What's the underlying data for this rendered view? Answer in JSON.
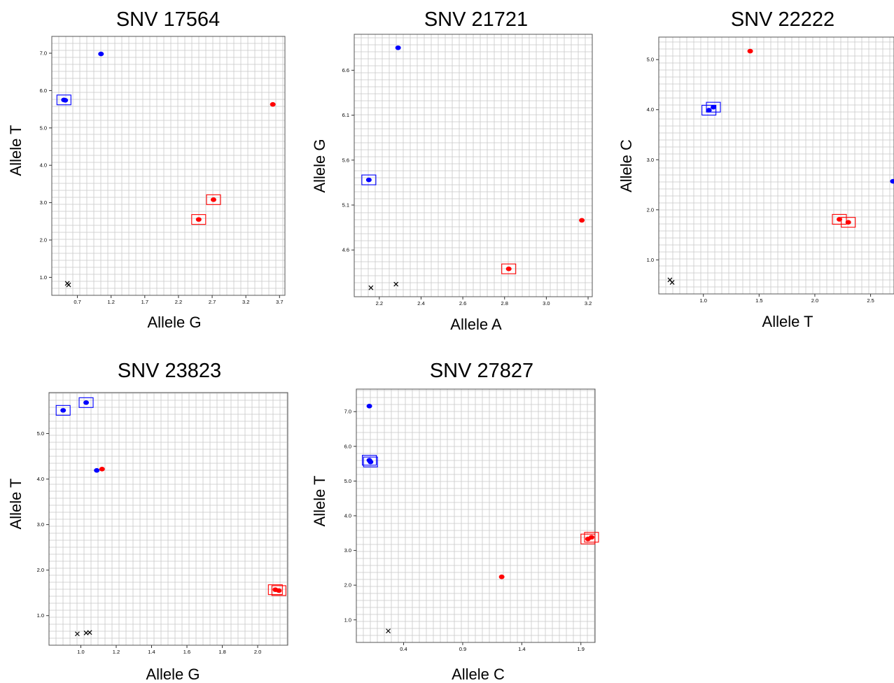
{
  "chart_data": [
    {
      "type": "scatter",
      "title": "SNV 17564",
      "xlabel": "Allele G",
      "ylabel": "Allele T",
      "xlim": [
        0.32,
        3.78
      ],
      "ylim": [
        0.52,
        7.45
      ],
      "xticks": [
        "0.7",
        "1.2",
        "1.7",
        "2.2",
        "2.7",
        "3.2",
        "3.7"
      ],
      "yticks": [
        "1.0",
        "2.0",
        "3.0",
        "4.0",
        "5.0",
        "6.0",
        "7.0"
      ],
      "grid": true,
      "points": [
        {
          "x": 1.05,
          "y": 6.98,
          "color": "#0000ff",
          "marker": "dot",
          "boxed": false
        },
        {
          "x": 0.5,
          "y": 5.75,
          "color": "#0000ff",
          "marker": "dot",
          "boxed": true
        },
        {
          "x": 0.52,
          "y": 5.74,
          "color": "#0000ff",
          "marker": "dot",
          "boxed": false
        },
        {
          "x": 3.6,
          "y": 5.63,
          "color": "#ff0000",
          "marker": "dot",
          "boxed": false
        },
        {
          "x": 2.72,
          "y": 3.08,
          "color": "#ff0000",
          "marker": "dot",
          "boxed": true
        },
        {
          "x": 2.5,
          "y": 2.55,
          "color": "#ff0000",
          "marker": "dot",
          "boxed": true
        },
        {
          "x": 0.55,
          "y": 0.84,
          "color": "#000000",
          "marker": "x",
          "boxed": false
        },
        {
          "x": 0.57,
          "y": 0.8,
          "color": "#000000",
          "marker": "x",
          "boxed": false
        }
      ]
    },
    {
      "type": "scatter",
      "title": "SNV 21721",
      "xlabel": "Allele A",
      "ylabel": "Allele G",
      "xlim": [
        2.08,
        3.22
      ],
      "ylim": [
        4.08,
        7.0
      ],
      "xticks": [
        "2.2",
        "2.4",
        "2.6",
        "2.8",
        "3.0",
        "3.2"
      ],
      "yticks": [
        "4.6",
        "5.1",
        "5.6",
        "6.1",
        "6.6"
      ],
      "grid": true,
      "points": [
        {
          "x": 2.29,
          "y": 6.85,
          "color": "#0000ff",
          "marker": "dot",
          "boxed": false
        },
        {
          "x": 2.15,
          "y": 5.38,
          "color": "#0000ff",
          "marker": "dot",
          "boxed": true
        },
        {
          "x": 3.17,
          "y": 4.93,
          "color": "#ff0000",
          "marker": "dot",
          "boxed": false
        },
        {
          "x": 2.82,
          "y": 4.39,
          "color": "#ff0000",
          "marker": "dot",
          "boxed": true
        },
        {
          "x": 2.16,
          "y": 4.18,
          "color": "#000000",
          "marker": "x",
          "boxed": false
        },
        {
          "x": 2.28,
          "y": 4.22,
          "color": "#000000",
          "marker": "x",
          "boxed": false
        }
      ]
    },
    {
      "type": "scatter",
      "title": "SNV 22222",
      "xlabel": "Allele T",
      "ylabel": "Allele C",
      "xlim": [
        0.6,
        2.71
      ],
      "ylim": [
        0.32,
        5.45
      ],
      "xticks": [
        "1.0",
        "1.5",
        "2.0",
        "2.5"
      ],
      "yticks": [
        "1.0",
        "2.0",
        "3.0",
        "4.0",
        "5.0"
      ],
      "grid": true,
      "points": [
        {
          "x": 1.42,
          "y": 5.17,
          "color": "#ff0000",
          "marker": "dot",
          "boxed": false
        },
        {
          "x": 1.09,
          "y": 4.05,
          "color": "#0000ff",
          "marker": "dot",
          "boxed": true
        },
        {
          "x": 1.05,
          "y": 3.99,
          "color": "#0000ff",
          "marker": "dot",
          "boxed": true
        },
        {
          "x": 2.7,
          "y": 2.57,
          "color": "#0000ff",
          "marker": "dot",
          "boxed": false
        },
        {
          "x": 2.22,
          "y": 1.81,
          "color": "#ff0000",
          "marker": "dot",
          "boxed": true
        },
        {
          "x": 2.3,
          "y": 1.75,
          "color": "#ff0000",
          "marker": "dot",
          "boxed": true
        },
        {
          "x": 0.7,
          "y": 0.6,
          "color": "#000000",
          "marker": "x",
          "boxed": false
        },
        {
          "x": 0.72,
          "y": 0.55,
          "color": "#000000",
          "marker": "x",
          "boxed": false
        }
      ]
    },
    {
      "type": "scatter",
      "title": "SNV 23823",
      "xlabel": "Allele G",
      "ylabel": "Allele T",
      "xlim": [
        0.82,
        2.17
      ],
      "ylim": [
        0.35,
        5.9
      ],
      "xticks": [
        "1.0",
        "1.2",
        "1.4",
        "1.6",
        "1.8",
        "2.0"
      ],
      "yticks": [
        "1.0",
        "2.0",
        "3.0",
        "4.0",
        "5.0"
      ],
      "grid": true,
      "points": [
        {
          "x": 1.03,
          "y": 5.68,
          "color": "#0000ff",
          "marker": "dot",
          "boxed": true
        },
        {
          "x": 0.9,
          "y": 5.51,
          "color": "#0000ff",
          "marker": "dot",
          "boxed": true
        },
        {
          "x": 1.09,
          "y": 4.19,
          "color": "#0000ff",
          "marker": "dot",
          "boxed": false
        },
        {
          "x": 1.12,
          "y": 4.22,
          "color": "#ff0000",
          "marker": "dot",
          "boxed": false
        },
        {
          "x": 2.1,
          "y": 1.57,
          "color": "#ff0000",
          "marker": "dot",
          "boxed": true
        },
        {
          "x": 2.12,
          "y": 1.55,
          "color": "#ff0000",
          "marker": "dot",
          "boxed": true
        },
        {
          "x": 0.98,
          "y": 0.6,
          "color": "#000000",
          "marker": "x",
          "boxed": false
        },
        {
          "x": 1.03,
          "y": 0.62,
          "color": "#000000",
          "marker": "x",
          "boxed": false
        },
        {
          "x": 1.05,
          "y": 0.63,
          "color": "#000000",
          "marker": "x",
          "boxed": false
        }
      ]
    },
    {
      "type": "scatter",
      "title": "SNV 27827",
      "xlabel": "Allele C",
      "ylabel": "Allele T",
      "xlim": [
        0.0,
        2.02
      ],
      "ylim": [
        0.35,
        7.65
      ],
      "xticks": [
        "0.4",
        "0.9",
        "1.4",
        "1.9"
      ],
      "yticks": [
        "1.0",
        "2.0",
        "3.0",
        "4.0",
        "5.0",
        "6.0",
        "7.0"
      ],
      "grid": true,
      "points": [
        {
          "x": 0.11,
          "y": 7.16,
          "color": "#0000ff",
          "marker": "dot",
          "boxed": false
        },
        {
          "x": 0.11,
          "y": 5.6,
          "color": "#0000ff",
          "marker": "dot",
          "boxed": true
        },
        {
          "x": 0.12,
          "y": 5.55,
          "color": "#0000ff",
          "marker": "dot",
          "boxed": true
        },
        {
          "x": 1.99,
          "y": 3.38,
          "color": "#ff0000",
          "marker": "dot",
          "boxed": true
        },
        {
          "x": 1.96,
          "y": 3.33,
          "color": "#ff0000",
          "marker": "dot",
          "boxed": true
        },
        {
          "x": 1.23,
          "y": 2.24,
          "color": "#ff0000",
          "marker": "dot",
          "boxed": false
        },
        {
          "x": 0.27,
          "y": 0.68,
          "color": "#000000",
          "marker": "x",
          "boxed": false
        }
      ]
    }
  ]
}
